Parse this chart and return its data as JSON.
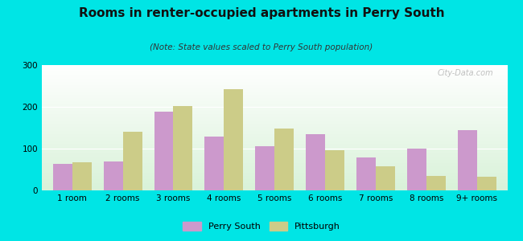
{
  "title": "Rooms in renter-occupied apartments in Perry South",
  "subtitle": "(Note: State values scaled to Perry South population)",
  "categories": [
    "1 room",
    "2 rooms",
    "3 rooms",
    "4 rooms",
    "5 rooms",
    "6 rooms",
    "7 rooms",
    "8 rooms",
    "9+ rooms"
  ],
  "perry_south": [
    63,
    70,
    188,
    128,
    105,
    135,
    78,
    100,
    145
  ],
  "pittsburgh": [
    68,
    140,
    202,
    242,
    148,
    97,
    57,
    35,
    32
  ],
  "perry_color": "#cc99cc",
  "pittsburgh_color": "#cccc88",
  "bg_outer": "#00e5e5",
  "ylim": [
    0,
    300
  ],
  "yticks": [
    0,
    100,
    200,
    300
  ],
  "bar_width": 0.38,
  "title_fontsize": 11,
  "subtitle_fontsize": 7.5,
  "legend_perry": "Perry South",
  "legend_pittsburgh": "Pittsburgh",
  "watermark": "City-Data.com"
}
